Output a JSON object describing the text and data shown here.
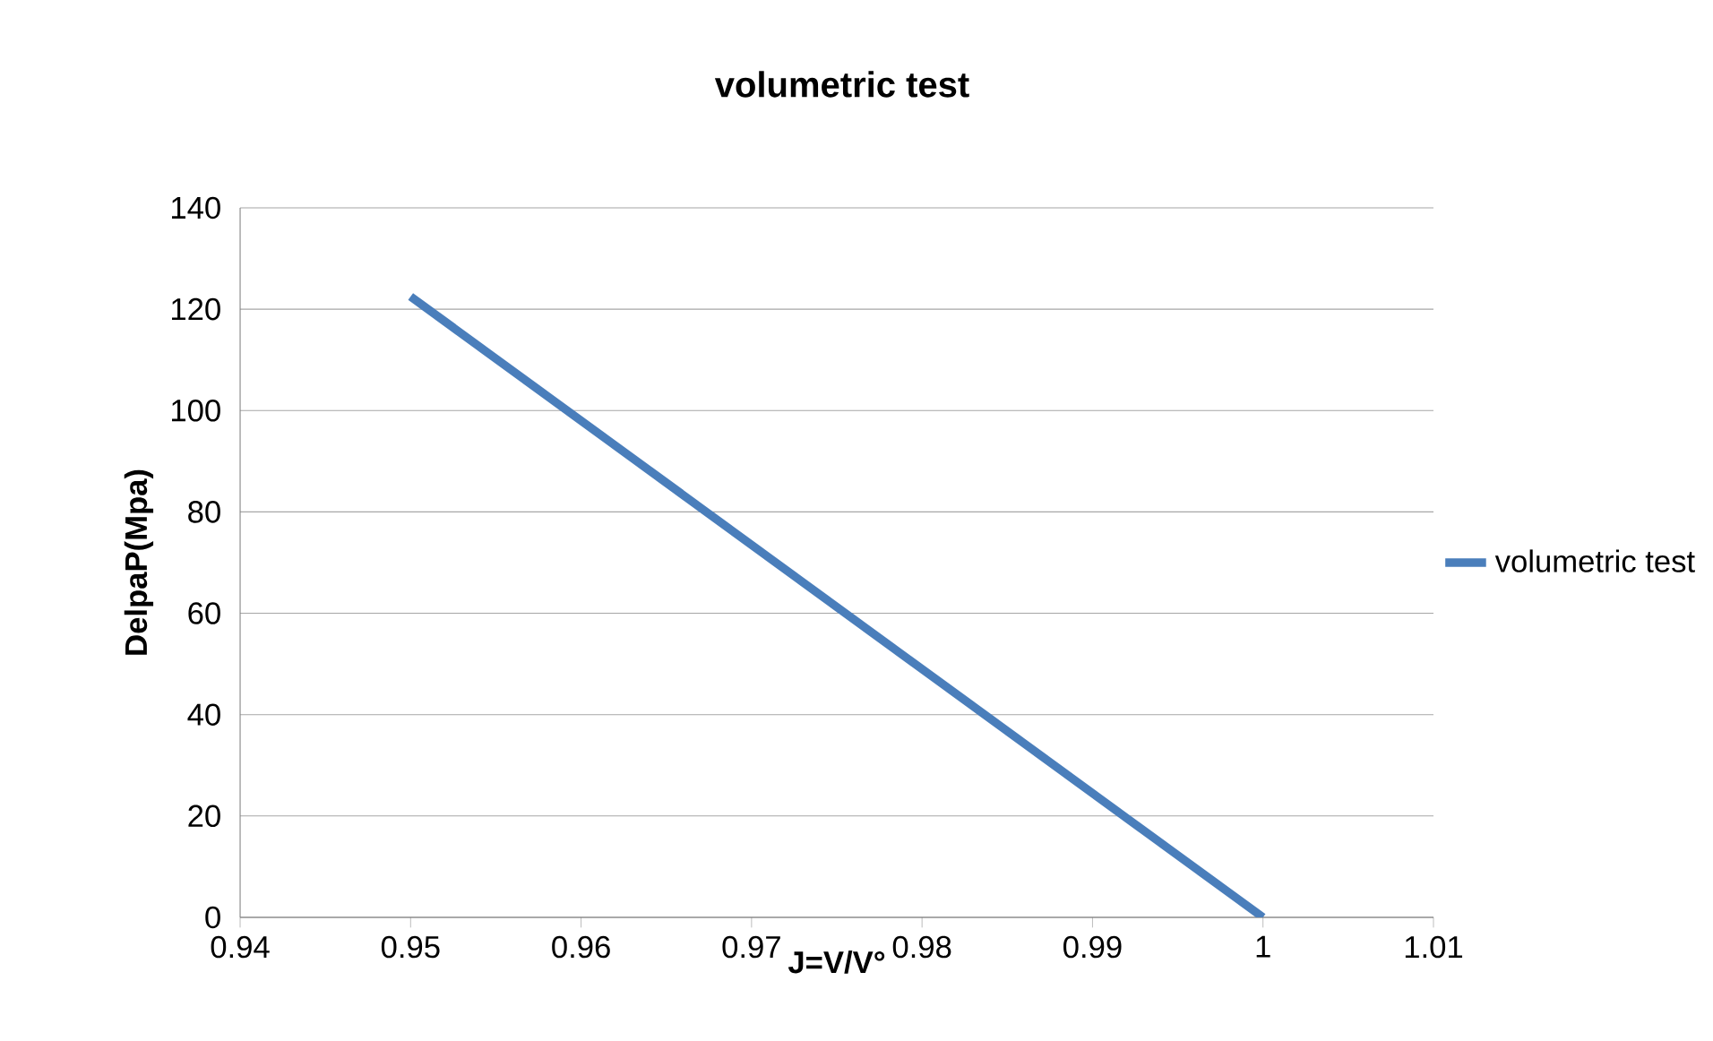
{
  "chart_data": {
    "type": "line",
    "title": "volumetric test",
    "xlabel": "J=V/V°",
    "ylabel": "DelpaP(Mpa)",
    "xlim": [
      0.94,
      1.01
    ],
    "xticks": [
      0.94,
      0.95,
      0.96,
      0.97,
      0.98,
      0.99,
      1,
      1.01
    ],
    "ylim": [
      0,
      140
    ],
    "yticks": [
      0,
      20,
      40,
      60,
      80,
      100,
      120,
      140
    ],
    "grid": "y",
    "legend": "right",
    "marker": "none",
    "line_style": "solid",
    "series": [
      {
        "name": "volumetric test",
        "color": "#4a7ebb",
        "x": [
          0.95,
          1
        ],
        "values": [
          122.5,
          0
        ]
      }
    ]
  }
}
